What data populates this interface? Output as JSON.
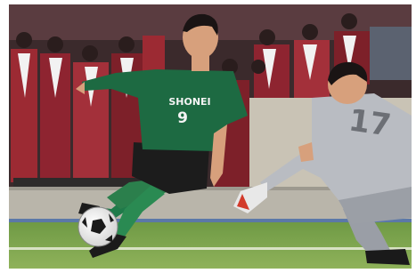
{
  "photo": {
    "player_green": {
      "sponsor": "SHONEI",
      "number": "9"
    },
    "goalkeeper": {
      "number": "17"
    }
  }
}
